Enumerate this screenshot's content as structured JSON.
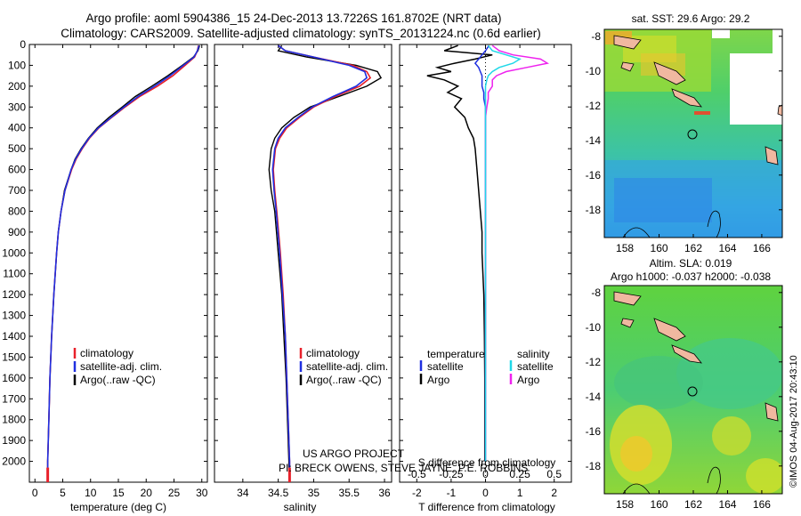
{
  "title": {
    "line1": "Argo profile: aoml 5904386_15 24-Dec-2013 13.7226S 161.8702E (NRT data)",
    "line2": "Climatology: CARS2009. Satellite-adjusted climatology: synTS_20131224.nc (0.6d earlier)"
  },
  "colors": {
    "climatology": "#e8202a",
    "satellite": "#1f2fe0",
    "argo": "#000000",
    "s_satellite": "#1fd8e8",
    "s_argo": "#ee22ee"
  },
  "credits": {
    "line1": "US ARGO PROJECT",
    "line2": "PI: BRECK OWENS, STEVE JAYNE, P.E. ROBBINS"
  },
  "stamp": "©IMOS 04-Aug-2017 20:43:10",
  "chart_data": [
    {
      "type": "line",
      "xlabel": "temperature (deg C)",
      "ylabel": "",
      "xlim": [
        -1,
        31
      ],
      "ylim": [
        2100,
        0
      ],
      "xticks": [
        0,
        5,
        10,
        15,
        20,
        25,
        30
      ],
      "yticks": [
        0,
        100,
        200,
        300,
        400,
        500,
        600,
        700,
        800,
        900,
        1000,
        1100,
        1200,
        1300,
        1400,
        1500,
        1600,
        1700,
        1800,
        1900,
        2000
      ],
      "legend": [
        "climatology",
        "satellite-adj. clim.",
        "Argo(..raw -QC)"
      ],
      "depth": [
        5,
        30,
        60,
        100,
        150,
        200,
        250,
        300,
        350,
        400,
        450,
        500,
        550,
        600,
        700,
        800,
        900,
        1000,
        1200,
        1400,
        1600,
        1800,
        2000,
        2030
      ],
      "series": [
        {
          "name": "climatology",
          "values": [
            29.4,
            29.2,
            28.7,
            27.0,
            24.8,
            22.0,
            18.8,
            16.2,
            13.8,
            11.5,
            9.8,
            8.5,
            7.4,
            6.6,
            5.4,
            4.7,
            4.2,
            3.9,
            3.4,
            3.0,
            2.7,
            2.5,
            2.3,
            2.3
          ]
        },
        {
          "name": "satellite-adj. clim.",
          "values": [
            29.5,
            29.2,
            28.6,
            26.7,
            24.3,
            21.5,
            18.5,
            16.0,
            13.7,
            11.4,
            9.7,
            8.4,
            7.3,
            6.5,
            5.4,
            4.7,
            4.2,
            3.9,
            3.4,
            3.0,
            2.7,
            2.5,
            2.3,
            2.3
          ]
        },
        {
          "name": "Argo(..raw -QC)",
          "values": [
            29.6,
            29.3,
            28.5,
            26.5,
            23.9,
            21.0,
            18.0,
            15.7,
            13.3,
            11.2,
            9.6,
            8.3,
            7.2,
            6.5,
            5.3,
            4.7,
            4.2,
            3.9,
            3.4,
            3.0,
            2.7,
            2.5,
            2.3,
            2.3
          ]
        }
      ]
    },
    {
      "type": "line",
      "xlabel": "salinity",
      "xlim": [
        33.6,
        36.1
      ],
      "ylim": [
        2100,
        0
      ],
      "xticks": [
        34,
        34.5,
        35,
        35.5,
        36
      ],
      "legend": [
        "climatology",
        "satellite-adj. clim.",
        "Argo(..raw -QC)"
      ],
      "depth": [
        5,
        30,
        60,
        100,
        130,
        160,
        200,
        250,
        300,
        350,
        400,
        450,
        500,
        600,
        700,
        800,
        1000,
        1200,
        1400,
        1600,
        1800,
        2000,
        2030
      ],
      "series": [
        {
          "name": "climatology",
          "values": [
            34.5,
            34.6,
            35.0,
            35.55,
            35.75,
            35.8,
            35.65,
            35.3,
            35.0,
            34.8,
            34.62,
            34.52,
            34.46,
            34.43,
            34.45,
            34.48,
            34.53,
            34.57,
            34.6,
            34.62,
            34.64,
            34.66,
            34.66
          ]
        },
        {
          "name": "satellite-adj. clim.",
          "values": [
            34.5,
            34.6,
            35.0,
            35.5,
            35.72,
            35.75,
            35.6,
            35.27,
            34.98,
            34.78,
            34.6,
            34.5,
            34.45,
            34.42,
            34.44,
            34.47,
            34.52,
            34.56,
            34.6,
            34.62,
            34.64,
            34.66,
            34.66
          ]
        },
        {
          "name": "Argo(..raw -QC)",
          "values": [
            34.55,
            34.5,
            34.9,
            35.6,
            35.9,
            35.95,
            35.75,
            35.35,
            34.95,
            34.72,
            34.55,
            34.45,
            34.4,
            34.37,
            34.4,
            34.45,
            34.5,
            34.55,
            34.58,
            34.61,
            34.63,
            34.65,
            34.65
          ]
        }
      ]
    },
    {
      "type": "line",
      "xlabel": "T difference from climatology",
      "xlabel_top": "S difference from climatology",
      "xlim": [
        -2.5,
        2.5
      ],
      "ylim": [
        2100,
        0
      ],
      "xticks": [
        -2,
        -1,
        0,
        1,
        2
      ],
      "xticks_top": [
        "-0.5",
        "-0.25",
        "0",
        "0.25",
        "0.5"
      ],
      "legend": {
        "temperature": "temperature",
        "salinity": "salinity",
        "sat": "satellite",
        "argo": "Argo"
      },
      "depth": [
        5,
        30,
        50,
        70,
        90,
        110,
        130,
        150,
        170,
        200,
        230,
        260,
        300,
        350,
        400,
        450,
        500,
        600,
        700,
        800,
        900,
        1000,
        1200,
        1400,
        1600,
        1800,
        2000
      ],
      "series": [
        {
          "name": "T satellite",
          "values": [
            0.1,
            0.0,
            -0.1,
            -0.2,
            -0.3,
            -0.2,
            -0.15,
            -0.1,
            -0.1,
            -0.1,
            -0.05,
            -0.05,
            0,
            0,
            0,
            0,
            0,
            0,
            0,
            0,
            0,
            0,
            0,
            0,
            0,
            0,
            0
          ]
        },
        {
          "name": "T Argo",
          "values": [
            -0.8,
            -1.2,
            0.2,
            -0.3,
            -0.9,
            -1.4,
            -1.0,
            -1.7,
            -1.2,
            -0.8,
            -1.1,
            -0.7,
            -0.9,
            -0.6,
            -0.5,
            -0.35,
            -0.3,
            -0.25,
            -0.2,
            -0.15,
            -0.1,
            -0.1,
            -0.05,
            -0.03,
            -0.02,
            -0.02,
            -0.02
          ]
        },
        {
          "name": "S satellite",
          "values": [
            0.02,
            0.05,
            0.15,
            0.25,
            0.2,
            0.1,
            0.05,
            0.02,
            0.01,
            0,
            0,
            0,
            0,
            0,
            0,
            0,
            0,
            0,
            0,
            0,
            0,
            0,
            0,
            0,
            0,
            0,
            0
          ]
        },
        {
          "name": "S Argo",
          "values": [
            0.05,
            0.1,
            0.2,
            0.4,
            0.45,
            0.3,
            0.15,
            0.08,
            0.05,
            0.05,
            0.02,
            0.02,
            0.01,
            0,
            0,
            0,
            0,
            0,
            0,
            0,
            0,
            0,
            0,
            0,
            0,
            0,
            0
          ]
        }
      ]
    }
  ],
  "maps": [
    {
      "title": "sat. SST: 29.6 Argo: 29.2",
      "xticks": [
        "158",
        "160",
        "162",
        "164",
        "166"
      ],
      "yticks": [
        "-8",
        "-10",
        "-12",
        "-14",
        "-16",
        "-18"
      ]
    },
    {
      "title1": "Altim. SLA: 0.019",
      "title2": "Argo h1000: -0.037 h2000: -0.038",
      "xticks": [
        "158",
        "160",
        "162",
        "164",
        "166"
      ],
      "yticks": [
        "-8",
        "-10",
        "-12",
        "-14",
        "-16",
        "-18"
      ]
    }
  ]
}
